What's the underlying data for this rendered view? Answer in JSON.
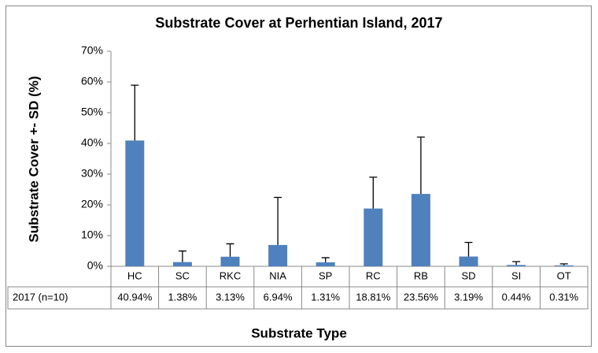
{
  "chart_data": {
    "type": "bar",
    "title": "Substrate Cover at Perhentian Island, 2017",
    "x_label": "Substrate Type",
    "y_label": "Substrate Cover +- SD (%)",
    "categories": [
      "HC",
      "SC",
      "RKC",
      "NIA",
      "SP",
      "RC",
      "RB",
      "SD",
      "SI",
      "OT"
    ],
    "series": [
      {
        "name": "2017 (n=10)",
        "color": "#4f81bd",
        "values": [
          40.94,
          1.38,
          3.13,
          6.94,
          1.31,
          18.81,
          23.56,
          3.19,
          0.44,
          0.31
        ],
        "value_labels": [
          "40.94%",
          "1.38%",
          "3.13%",
          "6.94%",
          "1.31%",
          "18.81%",
          "23.56%",
          "3.19%",
          "0.44%",
          "0.31%"
        ],
        "errors": [
          18,
          3.6,
          4.2,
          15.5,
          1.5,
          10.2,
          18.5,
          4.6,
          1.1,
          0.5
        ]
      }
    ],
    "ylim": [
      0,
      70
    ],
    "yticks": [
      {
        "value": 0,
        "label": "0%"
      },
      {
        "value": 10,
        "label": "10%"
      },
      {
        "value": 20,
        "label": "20%"
      },
      {
        "value": 30,
        "label": "30%"
      },
      {
        "value": 40,
        "label": "40%"
      },
      {
        "value": 50,
        "label": "50%"
      },
      {
        "value": 60,
        "label": "60%"
      },
      {
        "value": 70,
        "label": "70%"
      }
    ]
  }
}
